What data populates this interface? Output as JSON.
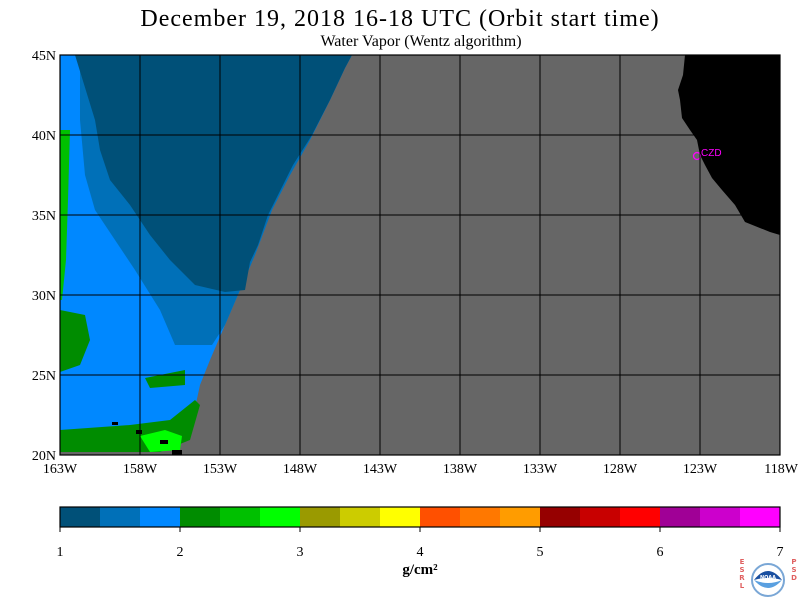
{
  "header": {
    "title": "December 19, 2018  16-18 UTC  (Orbit start time)",
    "subtitle": "Water Vapor (Wentz algorithm)"
  },
  "map": {
    "lat_labels": [
      "45N",
      "40N",
      "35N",
      "30N",
      "25N",
      "20N"
    ],
    "lon_labels": [
      "163W",
      "158W",
      "153W",
      "148W",
      "143W",
      "138W",
      "133W",
      "128W",
      "123W",
      "118W"
    ],
    "lat_range": [
      20,
      45
    ],
    "lon_range": [
      -163,
      -118
    ],
    "station_label": "CZD",
    "colors": {
      "no_data": "#666666",
      "land": "#000000",
      "station": "#ff00ff"
    }
  },
  "colorbar": {
    "tick_labels": [
      "1",
      "2",
      "3",
      "4",
      "5",
      "6",
      "7"
    ],
    "units": "g/cm²",
    "range": [
      1,
      7
    ],
    "colors": [
      "#005078",
      "#0070b8",
      "#0088ff",
      "#008c00",
      "#00c000",
      "#00ff00",
      "#9a9a00",
      "#cccc00",
      "#ffff00",
      "#ff5000",
      "#ff7800",
      "#ff9c00",
      "#960000",
      "#c80000",
      "#ff0000",
      "#a00096",
      "#cc00cc",
      "#ff00ff"
    ]
  },
  "logo": {
    "left_letters": "ESRL",
    "right_letters": "PSD",
    "center_text": "NOAA"
  }
}
